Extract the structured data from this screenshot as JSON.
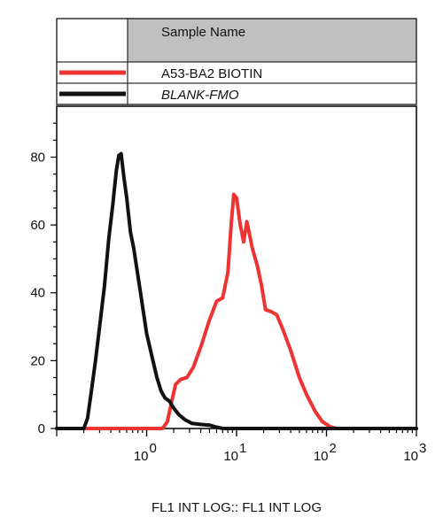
{
  "chart_data": {
    "type": "line",
    "xlabel": "FL1 INT LOG:: FL1 INT LOG",
    "ylabel": "",
    "x_scale": "log",
    "xlim": [
      0.1,
      1000
    ],
    "ylim": [
      0,
      95
    ],
    "grid": false,
    "legend": {
      "placement": "top",
      "header": "Sample Name"
    },
    "y_ticks": [
      {
        "value": 0,
        "label": "0"
      },
      {
        "value": 20,
        "label": "20"
      },
      {
        "value": 40,
        "label": "40"
      },
      {
        "value": 60,
        "label": "60"
      },
      {
        "value": 80,
        "label": "80"
      }
    ],
    "x_ticks": [
      {
        "value": 1,
        "base": "10",
        "exp": "0"
      },
      {
        "value": 10,
        "base": "10",
        "exp": "1"
      },
      {
        "value": 100,
        "base": "10",
        "exp": "2"
      },
      {
        "value": 1000,
        "base": "10",
        "exp": "3"
      }
    ],
    "series": [
      {
        "name": "A53-BA2 BIOTIN",
        "color": "#ee3333",
        "legend_italic": false,
        "points": [
          [
            1.5,
            0
          ],
          [
            1.7,
            2
          ],
          [
            1.9,
            8
          ],
          [
            2.1,
            13
          ],
          [
            2.4,
            14.5
          ],
          [
            2.8,
            15
          ],
          [
            3.3,
            18
          ],
          [
            4,
            24
          ],
          [
            5,
            32
          ],
          [
            6,
            37.5
          ],
          [
            7,
            38.5
          ],
          [
            8,
            46
          ],
          [
            8.7,
            60
          ],
          [
            9.3,
            69
          ],
          [
            10,
            68
          ],
          [
            11,
            60
          ],
          [
            12,
            55
          ],
          [
            13,
            61
          ],
          [
            14,
            57
          ],
          [
            15,
            53
          ],
          [
            17,
            48
          ],
          [
            19,
            42
          ],
          [
            21,
            35
          ],
          [
            24,
            34.5
          ],
          [
            28,
            33.5
          ],
          [
            33,
            29
          ],
          [
            40,
            23
          ],
          [
            50,
            15
          ],
          [
            60,
            10
          ],
          [
            75,
            5
          ],
          [
            90,
            2
          ],
          [
            110,
            0.5
          ],
          [
            130,
            0
          ]
        ]
      },
      {
        "name": "BLANK-FMO",
        "color": "#111111",
        "legend_italic": true,
        "points": [
          [
            0.2,
            0
          ],
          [
            0.22,
            3
          ],
          [
            0.24,
            10
          ],
          [
            0.27,
            20
          ],
          [
            0.3,
            30
          ],
          [
            0.34,
            42
          ],
          [
            0.38,
            56
          ],
          [
            0.42,
            66
          ],
          [
            0.46,
            76
          ],
          [
            0.49,
            80.5
          ],
          [
            0.52,
            81
          ],
          [
            0.56,
            74
          ],
          [
            0.6,
            68
          ],
          [
            0.66,
            58
          ],
          [
            0.72,
            53
          ],
          [
            0.8,
            45
          ],
          [
            0.9,
            36
          ],
          [
            1,
            28
          ],
          [
            1.15,
            21
          ],
          [
            1.3,
            15
          ],
          [
            1.45,
            11
          ],
          [
            1.6,
            9
          ],
          [
            1.8,
            8
          ],
          [
            2,
            6
          ],
          [
            2.3,
            4
          ],
          [
            2.7,
            2.5
          ],
          [
            3.2,
            1.5
          ],
          [
            4,
            1.2
          ],
          [
            5,
            1
          ],
          [
            6,
            0.4
          ],
          [
            7,
            0
          ]
        ]
      }
    ]
  }
}
